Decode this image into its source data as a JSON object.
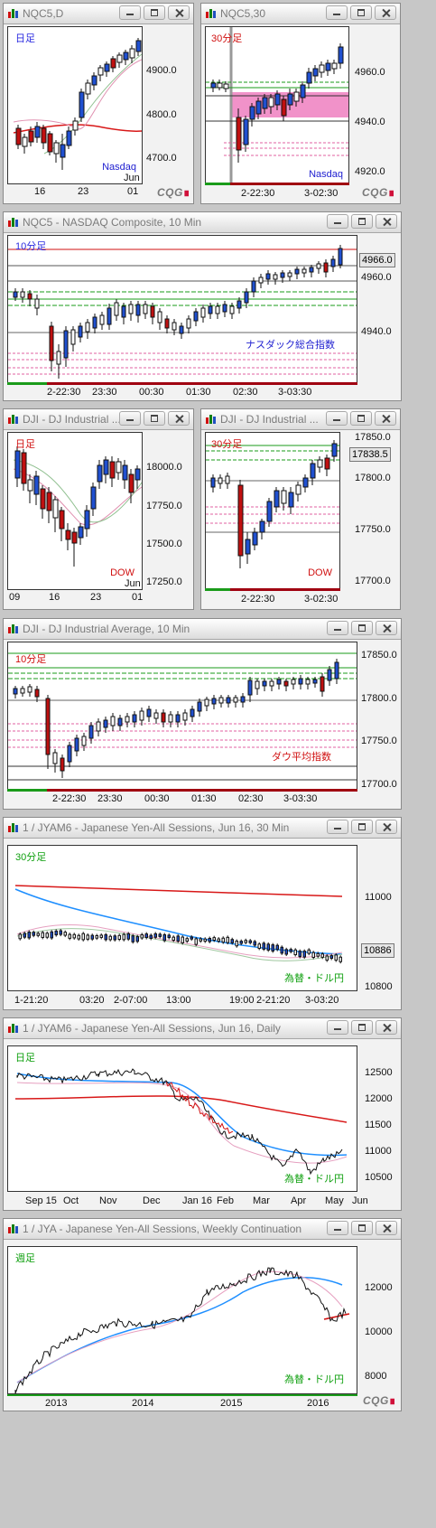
{
  "windows": [
    {
      "id": "w1",
      "title": "NQC5,D",
      "period": "日足",
      "footer": "Nasdaq",
      "yticks": [
        "4900.0",
        "4800.0",
        "4700.0"
      ],
      "xticks": [
        "16",
        "23",
        "01"
      ],
      "extra": "Jun"
    },
    {
      "id": "w2",
      "title": "NQC5,30",
      "period": "30分足",
      "footer": "Nasdaq",
      "yticks": [
        "4960.0",
        "4940.0",
        "4920.0"
      ],
      "xticks": [
        "2-22:30",
        "3-02:30"
      ]
    },
    {
      "id": "w3",
      "title": "NQC5 - NASDAQ Composite, 10 Min",
      "period": "10分足",
      "footer": "ナスダック総合指数",
      "yticks": [
        "4960.0",
        "4940.0"
      ],
      "price": "4966.0",
      "xticks": [
        "2-22:30",
        "23:30",
        "00:30",
        "01:30",
        "02:30",
        "3-03:30"
      ]
    },
    {
      "id": "w4",
      "title": "DJI - DJ Industrial ...",
      "period": "日足",
      "footer": "DOW",
      "yticks": [
        "18000.0",
        "17750.0",
        "17500.0",
        "17250.0"
      ],
      "xticks": [
        "09",
        "16",
        "23",
        "01"
      ],
      "extra": "Jun"
    },
    {
      "id": "w5",
      "title": "DJI - DJ Industrial ...",
      "period": "30分足",
      "footer": "DOW",
      "yticks": [
        "17850.0",
        "17800.0",
        "17750.0",
        "17700.0"
      ],
      "price": "17838.5",
      "xticks": [
        "2-22:30",
        "3-02:30"
      ]
    },
    {
      "id": "w6",
      "title": "DJI - DJ Industrial Average, 10 Min",
      "period": "10分足",
      "footer": "ダウ平均指数",
      "yticks": [
        "17850.0",
        "17800.0",
        "17750.0",
        "17700.0"
      ],
      "xticks": [
        "2-22:30",
        "23:30",
        "00:30",
        "01:30",
        "02:30",
        "3-03:30"
      ]
    },
    {
      "id": "w7",
      "title": "1 / JYAM6 - Japanese Yen-All Sessions, Jun 16, 30 Min",
      "period": "30分足",
      "footer": "為替・ドル円",
      "yticks": [
        "11000",
        "10800"
      ],
      "price": "10886",
      "xticks": [
        "1-21:20",
        "03:20",
        "2-07:00",
        "13:00",
        "19:00",
        "2-21:20",
        "3-03:20"
      ]
    },
    {
      "id": "w8",
      "title": "1 / JYAM6 - Japanese Yen-All Sessions, Jun 16, Daily",
      "period": "日足",
      "footer": "為替・ドル円",
      "yticks": [
        "12500",
        "12000",
        "11500",
        "11000",
        "10500"
      ],
      "xticks": [
        "Sep 15",
        "Oct",
        "Nov",
        "Dec",
        "Jan 16",
        "Feb",
        "Mar",
        "Apr",
        "May",
        "Jun"
      ]
    },
    {
      "id": "w9",
      "title": "1 / JYA - Japanese Yen-All Sessions, Weekly Continuation",
      "period": "週足",
      "footer": "為替・ドル円",
      "yticks": [
        "12000",
        "10000",
        "8000"
      ],
      "xticks": [
        "2013",
        "2014",
        "2015",
        "2016"
      ]
    }
  ],
  "brand": {
    "name": "CQG"
  },
  "colors": {
    "period_blue": "#2a2ae0",
    "period_red": "#d01010",
    "period_green": "#10a010",
    "footer_blue": "#2020d0",
    "footer_red": "#d01010",
    "footer_green": "#10a010"
  }
}
